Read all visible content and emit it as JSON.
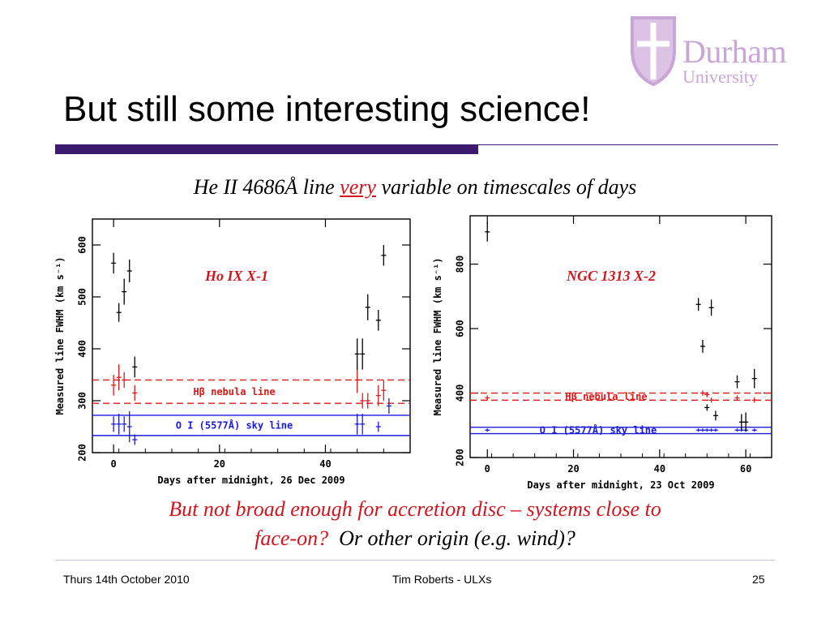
{
  "logo": {
    "name": "Durham",
    "sub": "University"
  },
  "title": "But still some interesting science!",
  "subtitle": {
    "pre": "He II 4686Å line ",
    "em": "very",
    "post": " variable on timescales of days"
  },
  "caption": {
    "line1": "But not broad enough for accretion disc – systems close to",
    "line2a": "face-on?",
    "line2b": "  Or other origin (e.g. wind)?"
  },
  "footer": {
    "date": "Thurs 14th October 2010",
    "author": "Tim Roberts - ULXs",
    "page": "25"
  },
  "colors": {
    "accent": "#3d1a6e",
    "data": "#000000",
    "hbeta": "#e01818",
    "sky": "#1a1ae0",
    "emphasis": "#d4141c"
  },
  "chart_data": [
    {
      "type": "scatter",
      "title": "Ho IX X-1",
      "xlabel": "Days after midnight, 26 Dec 2009",
      "ylabel": "Measured line FWHM (km s⁻¹)",
      "xlim": [
        -4,
        56
      ],
      "ylim": [
        200,
        650
      ],
      "xticks": [
        0,
        20,
        40
      ],
      "yticks": [
        200,
        300,
        400,
        500,
        600
      ],
      "series": [
        {
          "x": [
            0,
            1,
            2,
            3,
            4,
            46,
            47,
            48,
            50,
            51
          ],
          "y": [
            565,
            470,
            510,
            550,
            365,
            390,
            390,
            480,
            455,
            580
          ],
          "err": [
            20,
            18,
            25,
            22,
            20,
            30,
            30,
            25,
            20,
            20
          ]
        }
      ],
      "hbeta_band": [
        295,
        340
      ],
      "hbeta_label": "Hβ nebula line",
      "hbeta_points": {
        "x": [
          0,
          1,
          2,
          4,
          46,
          47,
          48,
          50,
          51
        ],
        "y": [
          330,
          345,
          340,
          315,
          340,
          300,
          300,
          310,
          320
        ],
        "err": [
          20,
          25,
          15,
          15,
          25,
          15,
          15,
          20,
          20
        ]
      },
      "sky_band": [
        233,
        272
      ],
      "sky_label": "O I (5577Å) sky line",
      "sky_points": {
        "x": [
          0,
          1,
          2,
          3,
          4,
          46,
          47,
          50,
          52
        ],
        "y": [
          255,
          255,
          255,
          250,
          225,
          255,
          255,
          250,
          290
        ],
        "err": [
          15,
          20,
          15,
          30,
          10,
          20,
          20,
          10,
          15
        ]
      }
    },
    {
      "type": "scatter",
      "title": "NGC 1313 X-2",
      "xlabel": "Days after midnight, 23 Oct 2009",
      "ylabel": "Measured line FWHM (km s⁻¹)",
      "xlim": [
        -4,
        66
      ],
      "ylim": [
        200,
        950
      ],
      "xticks": [
        0,
        20,
        40,
        60
      ],
      "yticks": [
        200,
        400,
        600,
        800
      ],
      "series": [
        {
          "x": [
            0,
            49,
            50,
            51,
            52,
            53,
            58,
            59,
            60,
            62
          ],
          "y": [
            900,
            675,
            545,
            355,
            665,
            330,
            435,
            310,
            310,
            445
          ],
          "err": [
            30,
            20,
            20,
            10,
            25,
            15,
            20,
            25,
            30,
            30
          ]
        }
      ],
      "hbeta_band": [
        378,
        400
      ],
      "hbeta_label": "Hβ nebula line",
      "hbeta_points": {
        "x": [
          0,
          50,
          51,
          52,
          58,
          62
        ],
        "y": [
          385,
          400,
          395,
          378,
          385,
          378
        ],
        "err": [
          8,
          8,
          8,
          8,
          8,
          8
        ]
      },
      "sky_band": [
        274,
        294
      ],
      "sky_label": "O I (5577Å) sky line",
      "sky_points": {
        "x": [
          0,
          49,
          50,
          51,
          52,
          53,
          58,
          59,
          60,
          62
        ],
        "y": [
          285,
          285,
          285,
          285,
          285,
          285,
          285,
          285,
          285,
          285
        ],
        "err": [
          5,
          5,
          5,
          5,
          5,
          5,
          5,
          5,
          5,
          5
        ]
      }
    }
  ]
}
